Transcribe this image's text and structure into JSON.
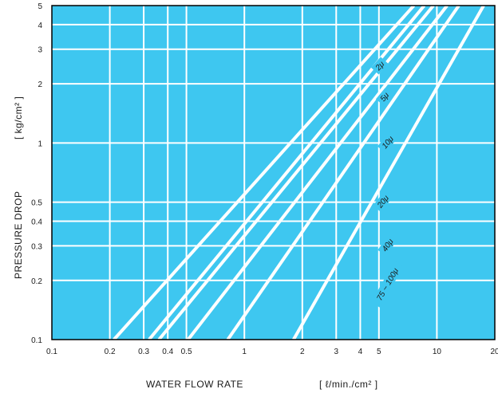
{
  "chart_data": {
    "type": "line",
    "xscale": "log",
    "yscale": "log",
    "xlim": [
      0.1,
      20
    ],
    "ylim": [
      0.1,
      5
    ],
    "grid": true,
    "xlabel": "WATER FLOW RATE",
    "xunit": "[ ℓ/min./cm² ]",
    "ylabel": "PRESSURE DROP",
    "yunit": "[ kg/cm² ]",
    "x_ticks": [
      {
        "value": 0.1,
        "label": "0.1"
      },
      {
        "value": 0.2,
        "label": "0.2"
      },
      {
        "value": 0.3,
        "label": "0.3"
      },
      {
        "value": 0.4,
        "label": "0.4"
      },
      {
        "value": 0.5,
        "label": "0.5"
      },
      {
        "value": 1,
        "label": "1"
      },
      {
        "value": 2,
        "label": "2"
      },
      {
        "value": 3,
        "label": "3"
      },
      {
        "value": 4,
        "label": "4"
      },
      {
        "value": 5,
        "label": "5"
      },
      {
        "value": 10,
        "label": "10"
      },
      {
        "value": 20,
        "label": "20"
      }
    ],
    "y_ticks": [
      {
        "value": 0.1,
        "label": "0.1"
      },
      {
        "value": 0.2,
        "label": "0.2"
      },
      {
        "value": 0.3,
        "label": "0.3"
      },
      {
        "value": 0.4,
        "label": "0.4"
      },
      {
        "value": 0.5,
        "label": "0.5"
      },
      {
        "value": 1,
        "label": "1"
      },
      {
        "value": 2,
        "label": "2"
      },
      {
        "value": 3,
        "label": "3"
      },
      {
        "value": 4,
        "label": "4"
      },
      {
        "value": 5,
        "label": "5"
      }
    ],
    "series": [
      {
        "name": "2μ",
        "x": [
          0.21,
          7.6
        ],
        "y": [
          0.1,
          5
        ],
        "label_at": [
          5.1,
          2.45
        ]
      },
      {
        "name": "5μ",
        "x": [
          0.32,
          8.6
        ],
        "y": [
          0.1,
          5
        ],
        "label_at": [
          5.4,
          1.7
        ]
      },
      {
        "name": "10μ",
        "x": [
          0.36,
          9.6
        ],
        "y": [
          0.1,
          5
        ],
        "label_at": [
          5.6,
          1.0
        ]
      },
      {
        "name": "20μ",
        "x": [
          0.51,
          11.3
        ],
        "y": [
          0.1,
          5
        ],
        "label_at": [
          5.3,
          0.5
        ]
      },
      {
        "name": "40μ",
        "x": [
          0.82,
          13.0
        ],
        "y": [
          0.1,
          5
        ],
        "label_at": [
          5.6,
          0.3
        ]
      },
      {
        "name": "75 ~ 100μ",
        "x": [
          1.8,
          17.5
        ],
        "y": [
          0.1,
          5
        ],
        "label_at": [
          5.6,
          0.19
        ]
      }
    ],
    "colors": {
      "plot_background": "#3ec7f0",
      "grid": "#ffffff",
      "curves": "#ffffff",
      "frame": "#000000"
    }
  }
}
